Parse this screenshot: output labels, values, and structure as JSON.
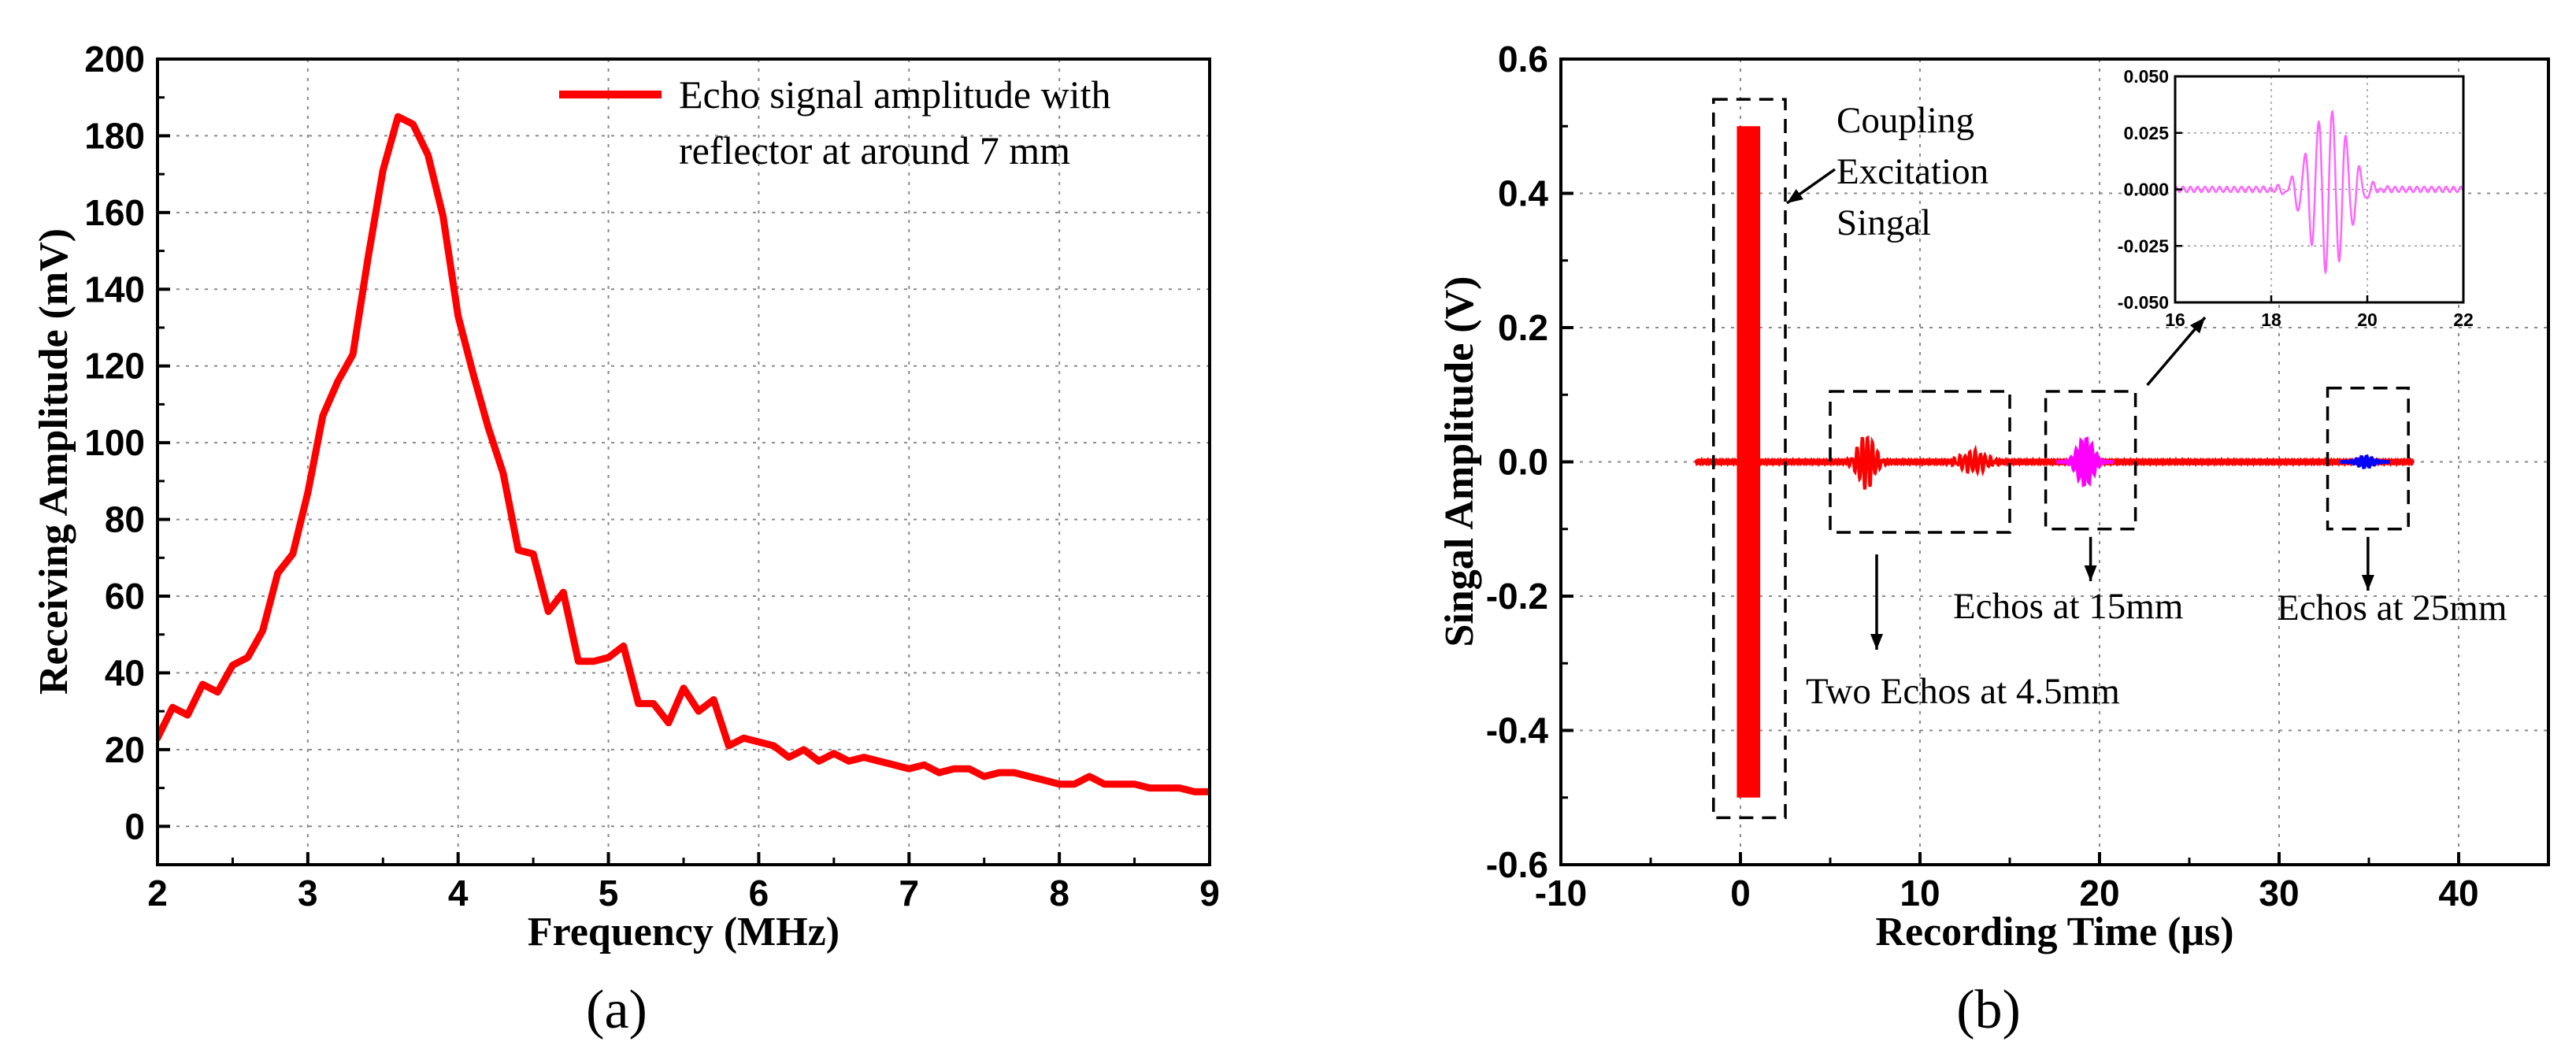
{
  "chart_data": [
    {
      "type": "line",
      "panel_label": "(a)",
      "xlabel": "Frequency (MHz)",
      "ylabel": "Receiving Amplitude (mV)",
      "xlim": [
        2,
        9
      ],
      "ylim": [
        -10,
        200
      ],
      "xticks": [
        2,
        3,
        4,
        5,
        6,
        7,
        8,
        9
      ],
      "yticks": [
        0,
        20,
        40,
        60,
        80,
        100,
        120,
        140,
        160,
        180,
        200
      ],
      "grid": true,
      "legend": {
        "position": "top-right",
        "entries": [
          {
            "line1": "Echo signal amplitude with",
            "line2": "reflector at around 7 mm",
            "color": "#ff0000"
          }
        ]
      },
      "series": [
        {
          "name": "Echo signal amplitude with reflector at around 7 mm",
          "color": "#ff0000",
          "x": [
            2.0,
            2.1,
            2.2,
            2.3,
            2.4,
            2.5,
            2.6,
            2.7,
            2.8,
            2.9,
            3.0,
            3.1,
            3.2,
            3.3,
            3.4,
            3.5,
            3.6,
            3.7,
            3.8,
            3.9,
            4.0,
            4.1,
            4.2,
            4.3,
            4.4,
            4.5,
            4.6,
            4.7,
            4.8,
            4.9,
            5.0,
            5.1,
            5.2,
            5.3,
            5.4,
            5.5,
            5.6,
            5.7,
            5.8,
            5.9,
            6.0,
            6.1,
            6.2,
            6.3,
            6.4,
            6.5,
            6.6,
            6.7,
            6.8,
            6.9,
            7.0,
            7.1,
            7.2,
            7.3,
            7.4,
            7.5,
            7.6,
            7.7,
            7.8,
            7.9,
            8.0,
            8.1,
            8.2,
            8.3,
            8.4,
            8.5,
            8.6,
            8.7,
            8.8,
            8.9,
            9.0
          ],
          "y": [
            23,
            31,
            29,
            37,
            35,
            42,
            44,
            51,
            66,
            71,
            87,
            107,
            116,
            123,
            148,
            171,
            185,
            183,
            175,
            159,
            133,
            118,
            104,
            92,
            72,
            71,
            56,
            61,
            43,
            43,
            44,
            47,
            32,
            32,
            27,
            36,
            30,
            33,
            21,
            23,
            22,
            21,
            18,
            20,
            17,
            19,
            17,
            18,
            17,
            16,
            15,
            16,
            14,
            15,
            15,
            13,
            14,
            14,
            13,
            12,
            11,
            11,
            13,
            11,
            11,
            11,
            10,
            10,
            10,
            9,
            9
          ]
        }
      ]
    },
    {
      "type": "line",
      "panel_label": "(b)",
      "xlabel": "Recording Time (μs)",
      "ylabel": "Singal Amplitude (V)",
      "xlim": [
        -10,
        45
      ],
      "ylim": [
        -0.6,
        0.6
      ],
      "xticks": [
        -10,
        0,
        10,
        20,
        30,
        40
      ],
      "yticks": [
        -0.6,
        -0.4,
        -0.2,
        0.0,
        0.2,
        0.4,
        0.6
      ],
      "xtick_labels": [
        "-10",
        "0",
        "10",
        "20",
        "30",
        "40"
      ],
      "ytick_labels": [
        "-0.6",
        "-0.4",
        "-0.2",
        "0.0",
        "0.2",
        "0.4",
        "0.6"
      ],
      "grid": true,
      "series": [
        {
          "name": "Coupling excitation signal",
          "color": "#ff0000",
          "t_start": -0.2,
          "t_end": 1.1,
          "amplitude": 0.5
        },
        {
          "name": "Echo 1 at 4.5mm",
          "color": "#ff0000",
          "center": 7.0,
          "amplitude": 0.04
        },
        {
          "name": "Echo 2 at 4.5mm",
          "color": "#ff0000",
          "center": 13.0,
          "amplitude": 0.015
        },
        {
          "name": "Echos at 15mm",
          "color": "#ff00ff",
          "center": 19.2,
          "amplitude": 0.035
        },
        {
          "name": "Echos at 25mm",
          "color": "#0000ff",
          "center": 34.8,
          "amplitude": 0.008
        },
        {
          "name": "Baseline",
          "color": "#ff0000",
          "t_start": -2.5,
          "t_end": 37.5,
          "amplitude": 0.003
        }
      ],
      "annotations": [
        {
          "label": "coupling",
          "lines": [
            "Coupling",
            "Excitation",
            "Singal"
          ],
          "box_x": [
            -1.5,
            2.5
          ],
          "box_y": [
            -0.53,
            0.54
          ]
        },
        {
          "label": "echo-4-5mm",
          "text": "Two Echos at 4.5mm",
          "box_x": [
            5,
            15
          ],
          "box_y": [
            -0.105,
            0.105
          ]
        },
        {
          "label": "echo-15mm",
          "text": "Echos at 15mm",
          "box_x": [
            17,
            22
          ],
          "box_y": [
            -0.1,
            0.105
          ]
        },
        {
          "label": "echo-25mm",
          "text": "Echos at 25mm",
          "box_x": [
            32.7,
            37.2
          ],
          "box_y": [
            -0.1,
            0.11
          ]
        }
      ],
      "inset": {
        "xlim": [
          16,
          22
        ],
        "ylim": [
          -0.05,
          0.05
        ],
        "xticks": [
          16,
          18,
          20,
          22
        ],
        "yticks": [
          -0.05,
          -0.025,
          0.0,
          0.025,
          0.05
        ],
        "xtick_labels": [
          "16",
          "18",
          "20",
          "22"
        ],
        "ytick_labels": [
          "-0.050",
          "-0.025",
          "0.000",
          "0.025",
          "0.050"
        ],
        "color": "#ff66ff",
        "signal": {
          "center": 19.2,
          "amplitude": 0.036,
          "frequency_mhz": 3.5
        }
      }
    }
  ]
}
